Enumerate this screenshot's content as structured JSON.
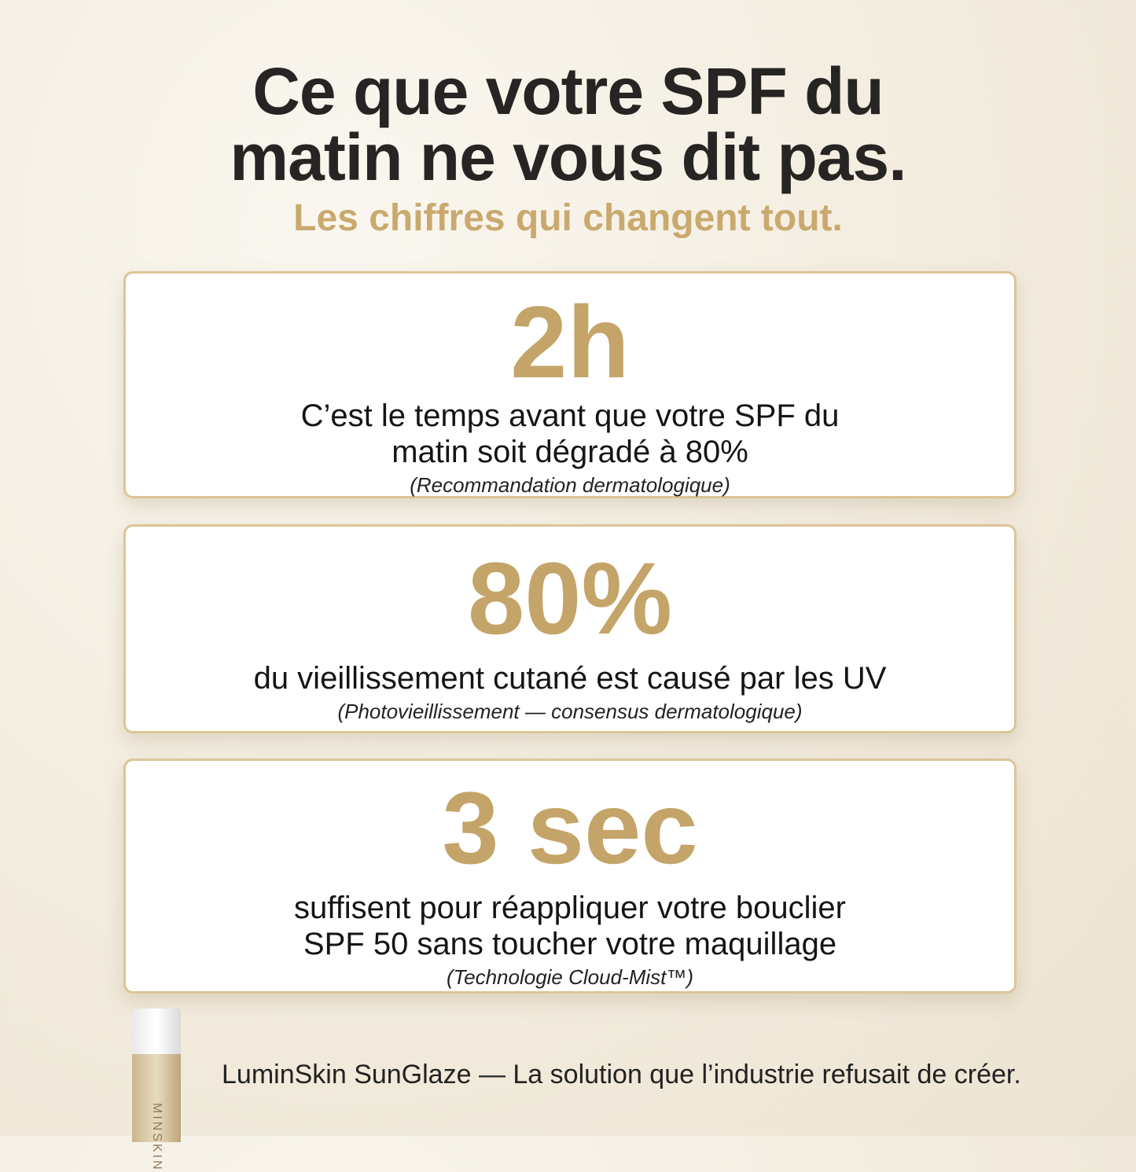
{
  "header": {
    "title_lines": [
      "Ce que votre SPF du",
      "matin ne vous dit pas."
    ],
    "subtitle": "Les chiffres qui changent tout."
  },
  "cards": [
    {
      "stat": "2h",
      "lines": [
        "C’est le temps avant que votre SPF du",
        "matin soit dégradé à 80%"
      ],
      "note": "(Recommandation dermatologique)"
    },
    {
      "stat": "80%",
      "lines": [
        "du vieillissement cutané est causé par les UV"
      ],
      "note": "(Photovieillissement — consensus dermatologique)"
    },
    {
      "stat": "3 sec",
      "lines": [
        "suffisent pour réappliquer votre bouclier",
        "SPF 50 sans toucher votre maquillage"
      ],
      "note": "(Technologie Cloud-Mist™)"
    }
  ],
  "footer": {
    "bottle_label": "MINSKIN",
    "tagline": "LuminSkin SunGlaze — La solution que l’industrie refusait de créer."
  }
}
